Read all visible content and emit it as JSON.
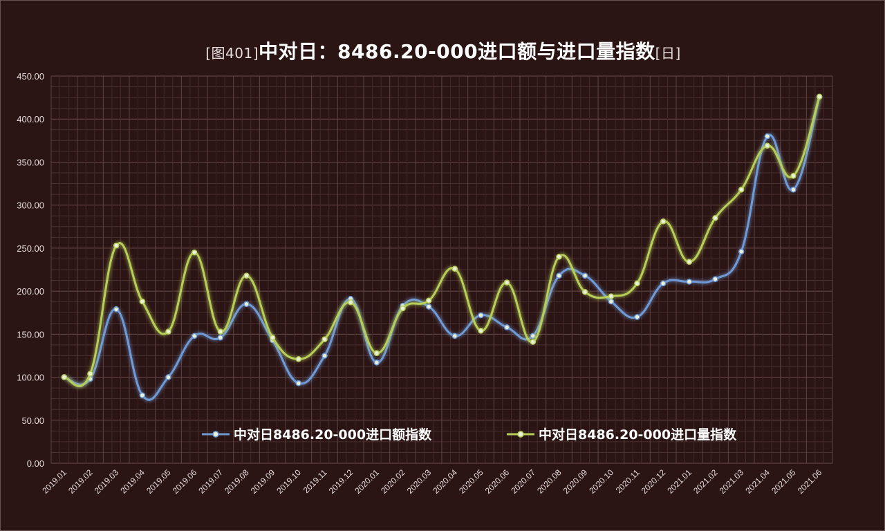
{
  "title": {
    "prefix": "[图401]",
    "main": "中对日：8486.20-000进口额与进口量指数",
    "suffix": "[日]"
  },
  "chart_data": {
    "type": "line",
    "title": "[图401]中对日：8486.20-000进口额与进口量指数[日]",
    "categories": [
      "2019.01",
      "2019.02",
      "2019.03",
      "2019.04",
      "2019.05",
      "2019.06",
      "2019.07",
      "2019.08",
      "2019.09",
      "2019.10",
      "2019.11",
      "2019.12",
      "2020.01",
      "2020.02",
      "2020.03",
      "2020.04",
      "2020.05",
      "2020.06",
      "2020.07",
      "2020.08",
      "2020.09",
      "2020.10",
      "2020.11",
      "2020.12",
      "2021.01",
      "2021.02",
      "2021.03",
      "2021.04",
      "2021.05",
      "2021.06"
    ],
    "ylim": [
      0,
      450
    ],
    "yticks": [
      "0.00",
      "50.00",
      "100.00",
      "150.00",
      "200.00",
      "250.00",
      "300.00",
      "350.00",
      "400.00",
      "450.00"
    ],
    "grid": true,
    "legend_position": "inside-bottom",
    "series": [
      {
        "name": "中对日8486.20-000进口额指数",
        "color": "#6f9ad6",
        "values": [
          100,
          98,
          179,
          79,
          100,
          148,
          146,
          185,
          143,
          93,
          125,
          191,
          117,
          183,
          182,
          148,
          172,
          158,
          148,
          218,
          218,
          188,
          170,
          209,
          211,
          214,
          246,
          380,
          318,
          426
        ]
      },
      {
        "name": "中对日8486.20-000进口量指数",
        "color": "#b7cf58",
        "values": [
          100,
          104,
          253,
          188,
          153,
          245,
          153,
          218,
          146,
          121,
          144,
          187,
          128,
          180,
          189,
          226,
          154,
          210,
          141,
          240,
          199,
          194,
          209,
          281,
          234,
          285,
          318,
          369,
          334,
          426
        ]
      }
    ]
  }
}
